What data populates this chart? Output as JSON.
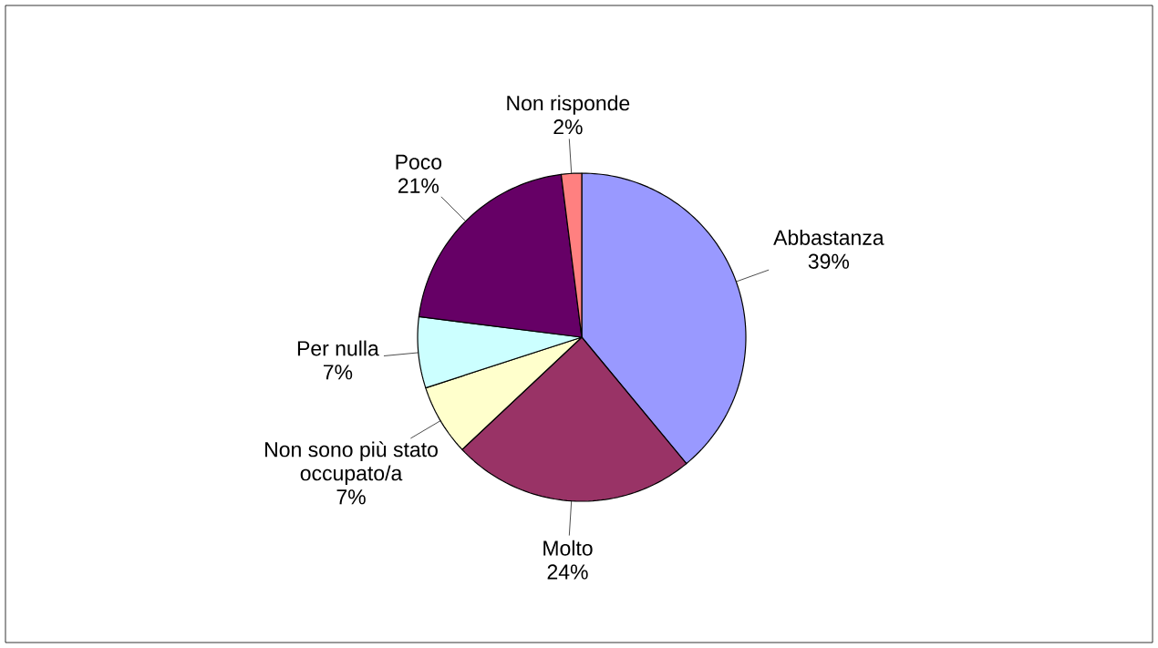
{
  "chart_data": {
    "type": "pie",
    "categories": [
      "Abbastanza",
      "Molto",
      "Non sono più stato occupato/a",
      "Per nulla",
      "Poco",
      "Non risponde"
    ],
    "values": [
      39,
      24,
      7,
      7,
      21,
      2
    ],
    "value_labels": [
      "39%",
      "24%",
      "7%",
      "7%",
      "21%",
      "2%"
    ],
    "colors": [
      "#9999ff",
      "#993366",
      "#ffffcc",
      "#ccffff",
      "#660066",
      "#ff8080"
    ]
  }
}
